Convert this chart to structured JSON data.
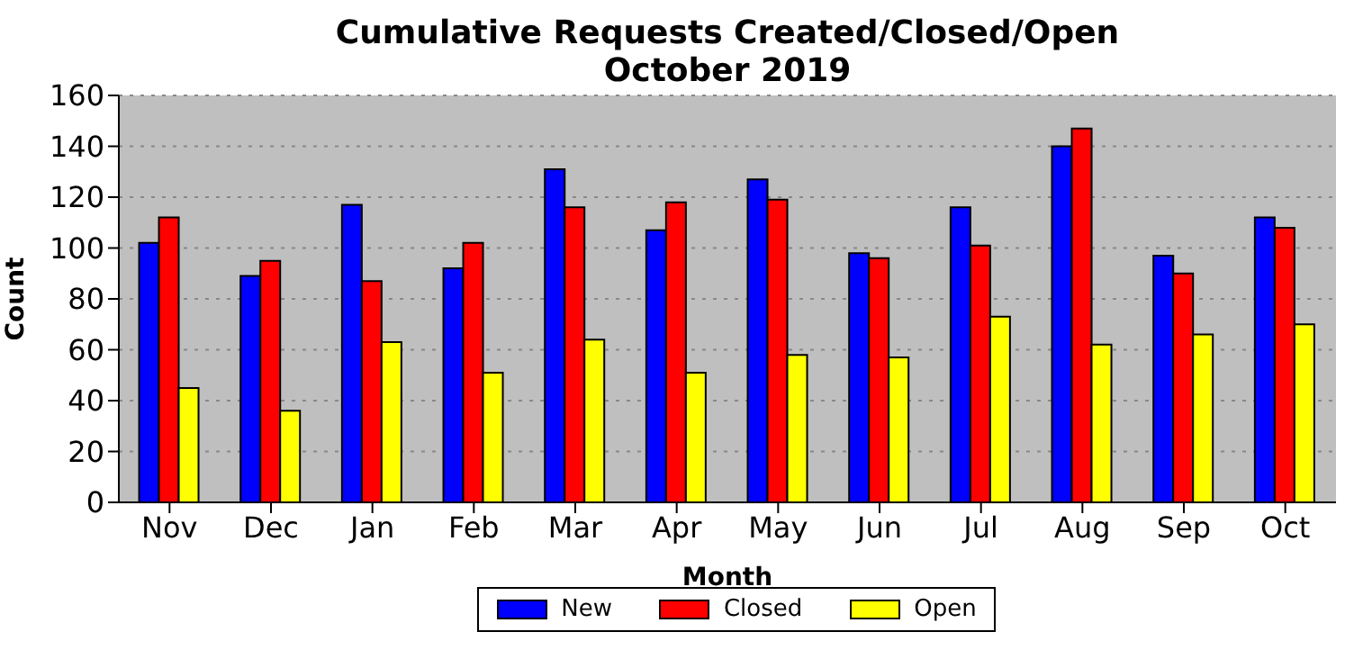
{
  "chart_data": {
    "type": "bar",
    "title": "Cumulative Requests Created/Closed/Open",
    "subtitle": "October 2019",
    "xlabel": "Month",
    "ylabel": "Count",
    "categories": [
      "Nov",
      "Dec",
      "Jan",
      "Feb",
      "Mar",
      "Apr",
      "May",
      "Jun",
      "Jul",
      "Aug",
      "Sep",
      "Oct"
    ],
    "series": [
      {
        "name": "New",
        "color": "#0000ff",
        "values": [
          102,
          89,
          117,
          92,
          131,
          107,
          127,
          98,
          116,
          140,
          97,
          112
        ]
      },
      {
        "name": "Closed",
        "color": "#ff0000",
        "values": [
          112,
          95,
          87,
          102,
          116,
          118,
          119,
          96,
          101,
          147,
          90,
          108
        ]
      },
      {
        "name": "Open",
        "color": "#ffff00",
        "values": [
          45,
          36,
          63,
          51,
          64,
          51,
          58,
          57,
          73,
          62,
          66,
          70
        ]
      }
    ],
    "ylim": [
      0,
      160
    ],
    "yticks": [
      0,
      20,
      40,
      60,
      80,
      100,
      120,
      140,
      160
    ],
    "grid": "y",
    "legend": "bottom"
  }
}
